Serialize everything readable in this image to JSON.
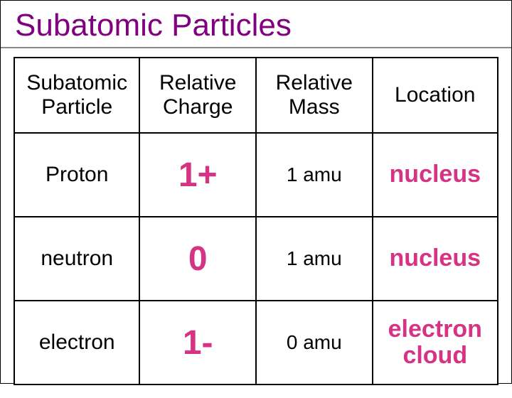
{
  "title": "Subatomic Particles",
  "title_color": "#800080",
  "columns": [
    "Subatomic\nParticle",
    "Relative\nCharge",
    "Relative\nMass",
    "Location"
  ],
  "header_color": "#000000",
  "header_fontsize": 30,
  "rows": [
    {
      "particle": "Proton",
      "charge": "1+",
      "charge_color": "#d63384",
      "mass": "1 amu",
      "location": "nucleus",
      "location_color": "#d63384"
    },
    {
      "particle": "neutron",
      "charge": "0",
      "charge_color": "#d63384",
      "mass": "1 amu",
      "location": "nucleus",
      "location_color": "#d63384"
    },
    {
      "particle": "electron",
      "charge": "1-",
      "charge_color": "#d63384",
      "mass": "0 amu",
      "location": "electron\ncloud",
      "location_color": "#d63384"
    }
  ],
  "column_widths_pct": [
    26,
    24,
    24,
    26
  ],
  "border_color": "#000000",
  "background_color": "#ffffff"
}
